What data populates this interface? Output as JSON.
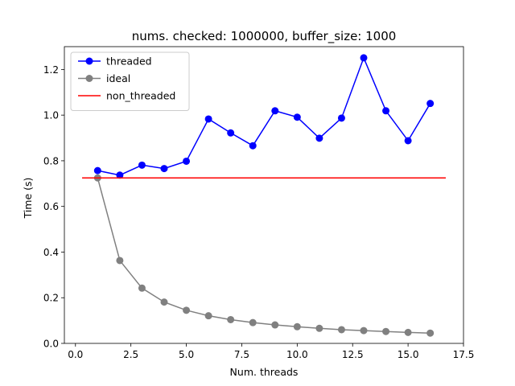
{
  "chart_data": {
    "type": "line",
    "title": "nums. checked: 1000000, buffer_size: 1000",
    "xlabel": "Num. threads",
    "ylabel": "Time (s)",
    "xlim": [
      -0.5,
      17.5
    ],
    "ylim": [
      0.0,
      1.3
    ],
    "x_ticks": [
      0.0,
      2.5,
      5.0,
      7.5,
      10.0,
      12.5,
      15.0,
      17.5
    ],
    "x_tick_labels": [
      "0.0",
      "2.5",
      "5.0",
      "7.5",
      "10.0",
      "12.5",
      "15.0",
      "17.5"
    ],
    "y_ticks": [
      0.0,
      0.2,
      0.4,
      0.6,
      0.8,
      1.0,
      1.2
    ],
    "y_tick_labels": [
      "0.0",
      "0.2",
      "0.4",
      "0.6",
      "0.8",
      "1.0",
      "1.2"
    ],
    "grid": false,
    "legend_position": "top-left",
    "series": [
      {
        "name": "threaded",
        "color": "#0000ff",
        "marker": "circle",
        "x": [
          1,
          2,
          3,
          4,
          5,
          6,
          7,
          8,
          9,
          10,
          11,
          12,
          13,
          14,
          15,
          16
        ],
        "y": [
          0.757,
          0.737,
          0.781,
          0.766,
          0.798,
          0.983,
          0.922,
          0.866,
          1.019,
          0.991,
          0.899,
          0.987,
          1.251,
          1.019,
          0.888,
          1.051
        ]
      },
      {
        "name": "ideal",
        "color": "#808080",
        "marker": "circle",
        "x": [
          1,
          2,
          3,
          4,
          5,
          6,
          7,
          8,
          9,
          10,
          11,
          12,
          13,
          14,
          15,
          16
        ],
        "y": [
          0.725,
          0.363,
          0.242,
          0.181,
          0.145,
          0.121,
          0.104,
          0.091,
          0.081,
          0.073,
          0.066,
          0.06,
          0.056,
          0.052,
          0.048,
          0.045
        ]
      },
      {
        "name": "non_threaded",
        "color": "#ff0000",
        "marker": "none",
        "x": [
          0.3,
          16.7
        ],
        "y": [
          0.725,
          0.725
        ]
      }
    ]
  }
}
